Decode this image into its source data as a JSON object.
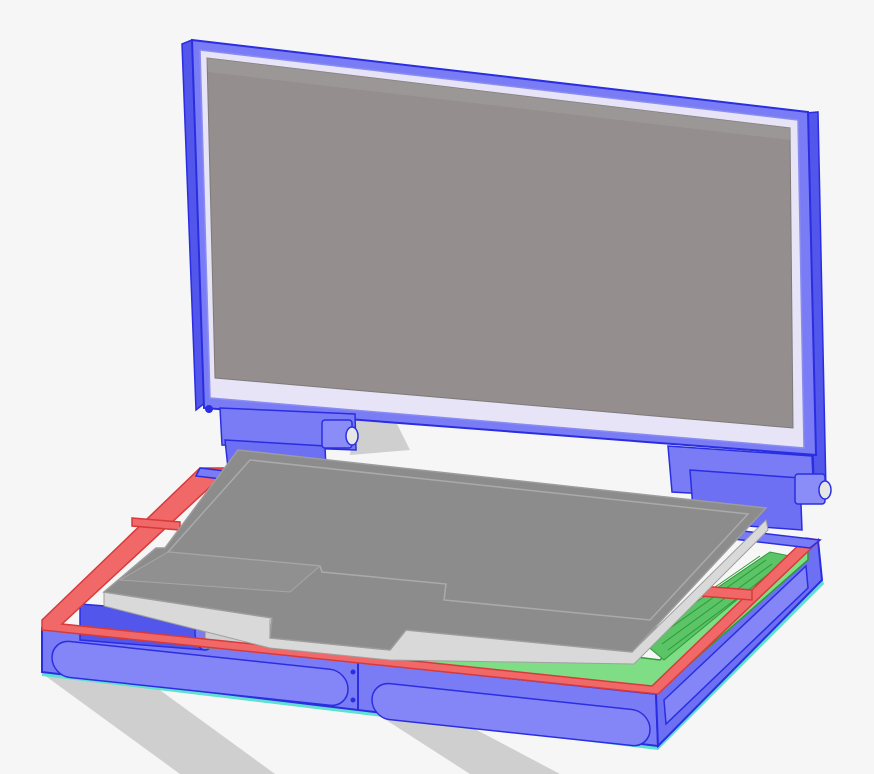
{
  "viewport": {
    "background": "#f6f6f6",
    "shadow": "#cfcfcf"
  },
  "model": {
    "colors": {
      "frame_blue": "#7a7cf5",
      "frame_blue_dark": "#2a2ee0",
      "frame_blue_light": "#a9abff",
      "bezel_light": "#e6e4f6",
      "screen_gray": "#948e8e",
      "screen_gray_dark": "#847e7e",
      "red_rail": "#f06868",
      "red_rail_dark": "#d83a3a",
      "board_green": "#7fdd86",
      "board_green_dark": "#2f9a3a",
      "plate_gray": "#9b9b9b",
      "plate_top": "#8c8c8c",
      "plate_edge": "#d9d9d9",
      "edge_cyan": "#5fe0d0"
    },
    "parts": [
      "lid-bezel",
      "display-panel",
      "hinge-left",
      "hinge-right",
      "base-frame",
      "red-rail",
      "keyboard-plate",
      "green-pcb",
      "cylinder-battery"
    ]
  }
}
